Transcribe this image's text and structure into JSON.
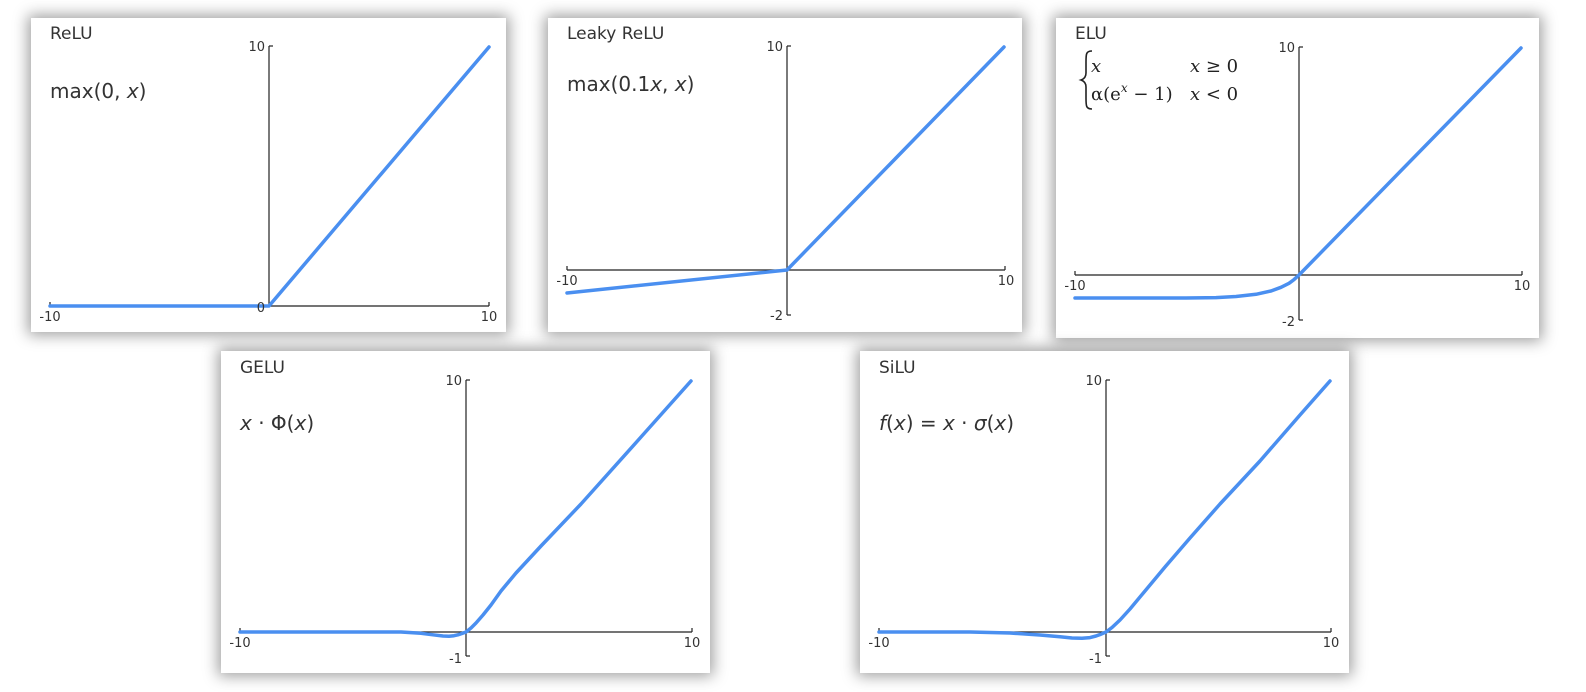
{
  "colors": {
    "curve": "#4a8ff0",
    "axis": "#222222",
    "text": "#333333"
  },
  "chart_data": [
    {
      "type": "line",
      "title": "ReLU",
      "formula": [
        "max(0, ",
        "x",
        ")"
      ],
      "fn": "relu",
      "xlim": [
        -10,
        10
      ],
      "ylim": [
        0,
        10
      ],
      "tick_labels": {
        "xmin": "-10",
        "xmax": "10",
        "ymin": "0",
        "ymax": "10"
      },
      "series": [
        {
          "x": [
            -10,
            0,
            10
          ],
          "y": [
            0,
            0,
            10
          ]
        }
      ]
    },
    {
      "type": "line",
      "title": "Leaky ReLU",
      "formula": [
        "max(0.1",
        "x",
        ", ",
        "x",
        ")"
      ],
      "fn": "leaky",
      "xlim": [
        -10,
        10
      ],
      "ylim": [
        -2,
        10
      ],
      "tick_labels": {
        "xmin": "-10",
        "xmax": "10",
        "ymin": "-2",
        "ymax": "10"
      },
      "series": [
        {
          "x": [
            -10,
            0,
            10
          ],
          "y": [
            -1,
            0,
            10
          ]
        }
      ]
    },
    {
      "type": "line",
      "title": "ELU",
      "formula_cases": [
        {
          "value": [
            "x"
          ],
          "condition": [
            "x",
            " ≥ 0"
          ]
        },
        {
          "value": [
            "α(e",
            "x",
            " − 1)"
          ],
          "condition": [
            "x",
            " < 0"
          ]
        }
      ],
      "fn": "elu",
      "xlim": [
        -10,
        10
      ],
      "ylim": [
        -2,
        10
      ],
      "tick_labels": {
        "xmin": "-10",
        "xmax": "10",
        "ymin": "-2",
        "ymax": "10"
      },
      "series": [
        {
          "x": [
            -10,
            -2,
            -1,
            0,
            10
          ],
          "y": [
            -1.0,
            -0.86,
            -0.63,
            0,
            10
          ]
        }
      ]
    },
    {
      "type": "line",
      "title": "GELU",
      "formula": [
        "x",
        " · Φ(",
        "x",
        ")"
      ],
      "fn": "gelu",
      "xlim": [
        -10,
        10
      ],
      "ylim": [
        -1,
        10
      ],
      "tick_labels": {
        "xmin": "-10",
        "xmax": "10",
        "ymin": "-1",
        "ymax": "10"
      },
      "series": [
        {
          "x": [
            -10,
            -1,
            0,
            1,
            10
          ],
          "y": [
            0,
            -0.16,
            0,
            0.84,
            10
          ]
        }
      ]
    },
    {
      "type": "line",
      "title": "SiLU",
      "formula": [
        "f",
        "(",
        "x",
        ") = ",
        "x",
        " · ",
        "σ",
        "(",
        "x",
        ")"
      ],
      "fn": "silu",
      "xlim": [
        -10,
        10
      ],
      "ylim": [
        -1,
        10
      ],
      "tick_labels": {
        "xmin": "-10",
        "xmax": "10",
        "ymin": "-1",
        "ymax": "10"
      },
      "series": [
        {
          "x": [
            -10,
            -1.28,
            0,
            1,
            10
          ],
          "y": [
            0,
            -0.28,
            0,
            0.73,
            10
          ]
        }
      ]
    }
  ]
}
